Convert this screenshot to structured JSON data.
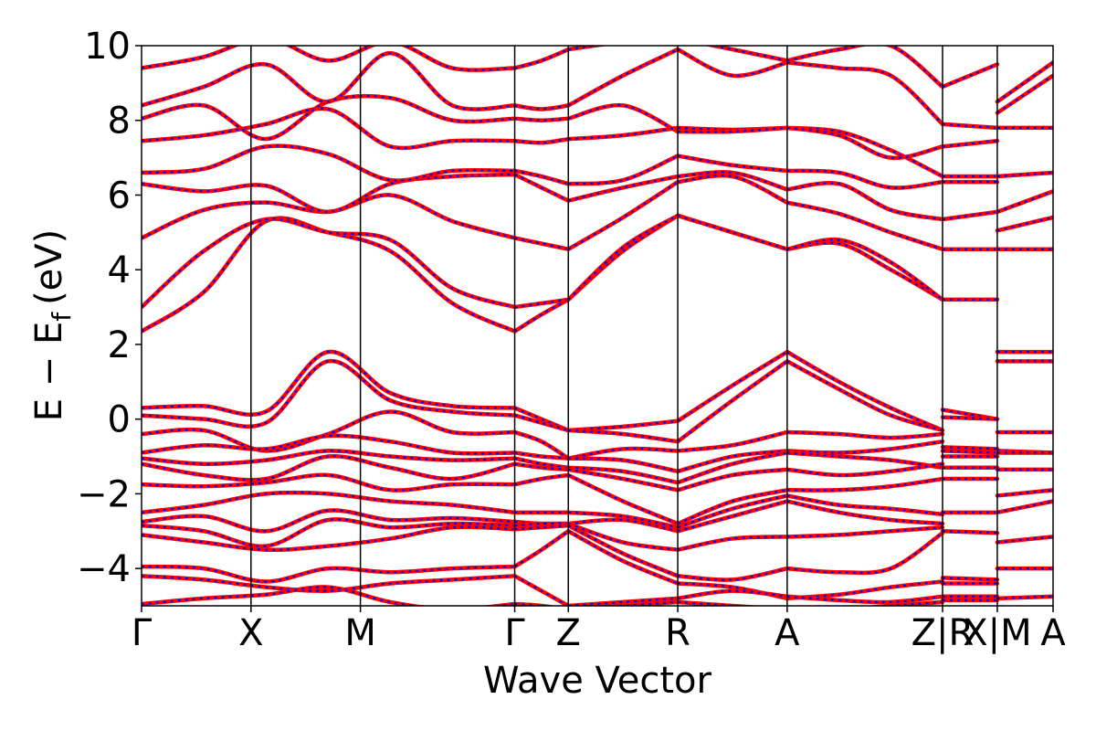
{
  "chart_data": {
    "type": "line",
    "title": "",
    "xlabel": "Wave Vector",
    "ylabel_main": "E − E",
    "ylabel_sub": "f",
    "ylabel_unit": "(eV)",
    "ylim": [
      -5,
      10
    ],
    "xlim": [
      0,
      8.33
    ],
    "yticks": [
      10,
      8,
      6,
      4,
      2,
      0,
      -2,
      -4
    ],
    "ytick_labels": [
      "10",
      "8",
      "6",
      "4",
      "2",
      "0",
      "−2",
      "−4"
    ],
    "kpoints": [
      {
        "label": "Γ",
        "x": 0.0
      },
      {
        "label": "X",
        "x": 1.0
      },
      {
        "label": "M",
        "x": 2.0
      },
      {
        "label": "Γ",
        "x": 3.41
      },
      {
        "label": "Z",
        "x": 3.9
      },
      {
        "label": "R",
        "x": 4.9
      },
      {
        "label": "A",
        "x": 5.9
      },
      {
        "label": "Z|R",
        "x": 7.32
      },
      {
        "label": "X|M",
        "x": 7.82
      },
      {
        "label": "A",
        "x": 8.33
      }
    ],
    "grid": false,
    "legend": "none",
    "colors": {
      "band_primary": "#ff0000",
      "band_overlay": "#0000ff",
      "axis": "#000000"
    },
    "segments": [
      {
        "x_start": 0.0,
        "x_end": 3.41,
        "bands": [
          [
            2.35,
            3.4,
            5.3,
            5.0,
            4.5,
            3.1,
            2.35
          ],
          [
            3.0,
            4.5,
            5.35,
            5.0,
            4.8,
            3.5,
            3.0
          ],
          [
            4.85,
            5.6,
            5.8,
            5.55,
            6.0,
            5.3,
            4.85
          ],
          [
            6.3,
            6.1,
            6.25,
            5.55,
            6.3,
            6.5,
            6.55
          ],
          [
            6.6,
            6.7,
            7.3,
            7.1,
            6.4,
            6.65,
            6.65
          ],
          [
            7.45,
            7.6,
            7.9,
            8.3,
            7.3,
            7.45,
            7.45
          ],
          [
            8.05,
            8.4,
            7.5,
            8.5,
            8.6,
            8.0,
            8.05
          ],
          [
            8.4,
            8.9,
            9.5,
            8.5,
            9.8,
            8.4,
            8.4
          ],
          [
            9.4,
            9.7,
            10.2,
            9.6,
            10.1,
            9.4,
            9.4
          ],
          [
            0.3,
            0.35,
            0.2,
            1.8,
            0.7,
            0.35,
            0.3
          ],
          [
            0.1,
            0.0,
            -0.1,
            1.55,
            0.5,
            0.2,
            0.1
          ],
          [
            -0.4,
            -0.3,
            -0.85,
            -0.4,
            0.2,
            -0.35,
            -0.35
          ],
          [
            -0.9,
            -0.7,
            -0.8,
            -0.45,
            -0.6,
            -0.9,
            -0.9
          ],
          [
            -1.05,
            -1.2,
            -1.1,
            -0.85,
            -1.0,
            -1.1,
            -1.05
          ],
          [
            -1.2,
            -1.5,
            -1.6,
            -1.0,
            -1.3,
            -1.6,
            -1.2
          ],
          [
            -1.75,
            -1.8,
            -1.7,
            -1.5,
            -1.9,
            -1.75,
            -1.75
          ],
          [
            -2.5,
            -2.3,
            -2.0,
            -2.0,
            -2.2,
            -2.3,
            -2.5
          ],
          [
            -2.75,
            -2.6,
            -3.0,
            -2.45,
            -2.7,
            -2.65,
            -2.75
          ],
          [
            -2.85,
            -3.0,
            -3.4,
            -2.7,
            -2.9,
            -2.8,
            -2.85
          ],
          [
            -3.1,
            -3.3,
            -3.5,
            -3.4,
            -3.2,
            -2.9,
            -2.95
          ],
          [
            -3.95,
            -4.0,
            -4.35,
            -4.0,
            -4.1,
            -4.0,
            -3.95
          ],
          [
            -4.2,
            -4.3,
            -4.5,
            -4.6,
            -4.4,
            -4.3,
            -4.2
          ],
          [
            -4.95,
            -4.8,
            -4.7,
            -4.5,
            -4.9,
            -5.1,
            -4.95
          ]
        ]
      },
      {
        "x_start": 3.41,
        "x_end": 3.9,
        "bands": [
          [
            2.35,
            2.8,
            3.2
          ],
          [
            3.0,
            3.1,
            3.2
          ],
          [
            4.85,
            4.7,
            4.55
          ],
          [
            6.55,
            6.2,
            5.85
          ],
          [
            6.65,
            6.5,
            6.3
          ],
          [
            7.45,
            7.4,
            7.5
          ],
          [
            8.05,
            8.0,
            8.05
          ],
          [
            8.4,
            8.3,
            8.4
          ],
          [
            9.4,
            9.6,
            9.9
          ],
          [
            0.3,
            0.0,
            -0.3
          ],
          [
            0.1,
            -0.1,
            -0.3
          ],
          [
            -0.35,
            -0.6,
            -1.05
          ],
          [
            -0.9,
            -1.0,
            -1.05
          ],
          [
            -1.05,
            -1.2,
            -1.3
          ],
          [
            -1.2,
            -1.3,
            -1.35
          ],
          [
            -1.75,
            -1.6,
            -1.5
          ],
          [
            -2.5,
            -2.5,
            -2.5
          ],
          [
            -2.75,
            -2.8,
            -2.8
          ],
          [
            -2.85,
            -2.8,
            -2.8
          ],
          [
            -2.95,
            -2.9,
            -2.85
          ],
          [
            -3.95,
            -3.5,
            -3.0
          ],
          [
            -4.2,
            -4.6,
            -5.0
          ],
          [
            -4.95,
            -5.0,
            -5.1
          ]
        ]
      },
      {
        "x_start": 3.9,
        "x_end": 4.9,
        "bands": [
          [
            3.2,
            4.5,
            5.45
          ],
          [
            3.2,
            4.6,
            5.45
          ],
          [
            4.55,
            5.4,
            6.35
          ],
          [
            5.85,
            6.2,
            6.5
          ],
          [
            6.3,
            6.4,
            7.05
          ],
          [
            7.5,
            7.6,
            7.8
          ],
          [
            8.05,
            8.4,
            7.7
          ],
          [
            8.4,
            9.2,
            9.9
          ],
          [
            9.9,
            10.1,
            10.2
          ],
          [
            -0.3,
            -0.2,
            -0.05
          ],
          [
            -0.3,
            -0.4,
            -0.6
          ],
          [
            -1.05,
            -0.8,
            -0.85
          ],
          [
            -1.05,
            -1.1,
            -1.4
          ],
          [
            -1.3,
            -1.4,
            -1.7
          ],
          [
            -1.35,
            -1.6,
            -1.9
          ],
          [
            -1.5,
            -2.2,
            -2.8
          ],
          [
            -2.5,
            -2.6,
            -2.9
          ],
          [
            -2.8,
            -2.7,
            -3.0
          ],
          [
            -2.8,
            -3.3,
            -3.5
          ],
          [
            -2.85,
            -3.6,
            -4.2
          ],
          [
            -3.0,
            -3.8,
            -4.4
          ],
          [
            -5.0,
            -4.9,
            -4.8
          ],
          [
            -5.1,
            -5.0,
            -4.9
          ]
        ]
      },
      {
        "x_start": 4.9,
        "x_end": 5.9,
        "bands": [
          [
            5.45,
            5.0,
            4.55
          ],
          [
            5.45,
            5.0,
            4.55
          ],
          [
            6.35,
            6.5,
            5.8
          ],
          [
            6.5,
            6.6,
            6.15
          ],
          [
            7.05,
            6.8,
            6.65
          ],
          [
            7.8,
            7.75,
            7.8
          ],
          [
            7.7,
            7.7,
            7.8
          ],
          [
            9.9,
            9.2,
            9.55
          ],
          [
            10.2,
            9.9,
            9.6
          ],
          [
            -0.05,
            0.9,
            1.8
          ],
          [
            -0.6,
            0.5,
            1.55
          ],
          [
            -0.85,
            -0.7,
            -0.35
          ],
          [
            -1.4,
            -1.0,
            -0.85
          ],
          [
            -1.7,
            -1.2,
            -0.9
          ],
          [
            -1.9,
            -1.5,
            -1.35
          ],
          [
            -2.8,
            -2.2,
            -1.9
          ],
          [
            -2.9,
            -2.4,
            -2.05
          ],
          [
            -3.0,
            -2.6,
            -2.2
          ],
          [
            -3.5,
            -3.2,
            -3.15
          ],
          [
            -4.2,
            -4.3,
            -4.0
          ],
          [
            -4.4,
            -4.5,
            -4.8
          ],
          [
            -4.8,
            -4.6,
            -4.75
          ],
          [
            -4.9,
            -5.0,
            -5.1
          ]
        ]
      },
      {
        "x_start": 5.9,
        "x_end": 7.32,
        "bands": [
          [
            4.55,
            4.7,
            4.0,
            3.2
          ],
          [
            4.55,
            4.8,
            4.2,
            3.2
          ],
          [
            5.8,
            5.5,
            5.0,
            4.55
          ],
          [
            6.15,
            6.3,
            5.6,
            5.35
          ],
          [
            6.65,
            6.6,
            6.2,
            6.35
          ],
          [
            7.8,
            7.7,
            7.2,
            6.5
          ],
          [
            7.8,
            7.6,
            7.0,
            7.3
          ],
          [
            9.55,
            9.4,
            9.2,
            7.9
          ],
          [
            9.6,
            9.9,
            10.0,
            8.9
          ],
          [
            1.8,
            1.0,
            0.3,
            -0.3
          ],
          [
            1.55,
            0.8,
            0.1,
            -0.3
          ],
          [
            -0.35,
            -0.4,
            -0.5,
            -0.4
          ],
          [
            -0.85,
            -0.9,
            -0.8,
            -0.6
          ],
          [
            -0.9,
            -1.0,
            -1.1,
            -1.3
          ],
          [
            -1.35,
            -1.5,
            -1.4,
            -1.2
          ],
          [
            -1.9,
            -1.9,
            -1.8,
            -1.6
          ],
          [
            -2.05,
            -2.3,
            -2.4,
            -2.55
          ],
          [
            -2.2,
            -2.5,
            -2.7,
            -2.8
          ],
          [
            -3.15,
            -3.1,
            -3.0,
            -2.9
          ],
          [
            -4.0,
            -4.1,
            -4.0,
            -3.05
          ],
          [
            -4.8,
            -4.7,
            -4.5,
            -4.35
          ],
          [
            -4.75,
            -4.85,
            -4.9,
            -4.75
          ],
          [
            -5.1,
            -5.1,
            -5.0,
            -4.9
          ]
        ]
      },
      {
        "x_start": 7.32,
        "x_end": 7.82,
        "bands": [
          [
            3.2,
            3.2
          ],
          [
            4.55,
            4.55
          ],
          [
            5.35,
            5.55
          ],
          [
            6.35,
            6.35
          ],
          [
            6.5,
            6.5
          ],
          [
            7.3,
            7.45
          ],
          [
            7.9,
            7.8
          ],
          [
            8.9,
            9.5
          ],
          [
            0.25,
            0.0
          ],
          [
            0.05,
            0.0
          ],
          [
            -0.75,
            -0.8
          ],
          [
            -0.85,
            -0.9
          ],
          [
            -1.0,
            -1.0
          ],
          [
            -1.3,
            -1.3
          ],
          [
            -1.6,
            -1.6
          ],
          [
            -2.5,
            -2.5
          ],
          [
            -3.0,
            -3.05
          ],
          [
            -4.25,
            -4.3
          ],
          [
            -4.4,
            -4.4
          ],
          [
            -4.75,
            -4.75
          ],
          [
            -4.85,
            -4.85
          ]
        ]
      },
      {
        "x_start": 7.82,
        "x_end": 8.33,
        "bands": [
          [
            4.55,
            4.55
          ],
          [
            5.05,
            5.4
          ],
          [
            5.55,
            6.1
          ],
          [
            6.5,
            6.6
          ],
          [
            7.8,
            7.8
          ],
          [
            8.2,
            9.2
          ],
          [
            8.5,
            9.55
          ],
          [
            1.8,
            1.8
          ],
          [
            1.55,
            1.55
          ],
          [
            -0.35,
            -0.35
          ],
          [
            -0.85,
            -0.9
          ],
          [
            -0.9,
            -0.9
          ],
          [
            -1.35,
            -1.35
          ],
          [
            -2.05,
            -1.9
          ],
          [
            -2.5,
            -2.2
          ],
          [
            -3.3,
            -3.15
          ],
          [
            -4.0,
            -4.0
          ],
          [
            -4.8,
            -4.75
          ]
        ]
      }
    ]
  }
}
